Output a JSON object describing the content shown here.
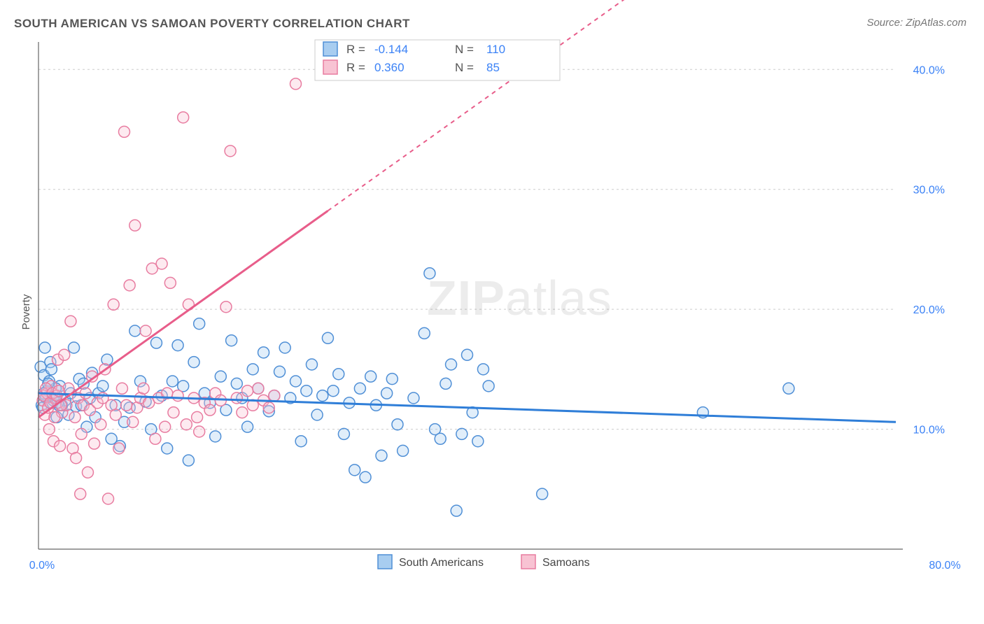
{
  "title": "SOUTH AMERICAN VS SAMOAN POVERTY CORRELATION CHART",
  "source": "Source: ZipAtlas.com",
  "ylabel": "Poverty",
  "watermark_a": "ZIP",
  "watermark_b": "atlas",
  "chart": {
    "type": "scatter",
    "background_color": "#ffffff",
    "grid_color": "#cccccc",
    "axis_color": "#666666",
    "tick_color": "#3b82f6",
    "x_min": 0.0,
    "x_max": 80.0,
    "y_min": 0.0,
    "y_max": 42.0,
    "x_ticks": [
      {
        "v": 0.0,
        "label": "0.0%"
      },
      {
        "v": 80.0,
        "label": "80.0%"
      }
    ],
    "y_ticks": [
      {
        "v": 10.0,
        "label": "10.0%"
      },
      {
        "v": 20.0,
        "label": "20.0%"
      },
      {
        "v": 30.0,
        "label": "30.0%"
      },
      {
        "v": 40.0,
        "label": "40.0%"
      }
    ],
    "marker_radius": 8,
    "marker_stroke_width": 1.5,
    "marker_fill_opacity": 0.35,
    "series": [
      {
        "name": "South Americans",
        "stroke": "#4f8fd6",
        "fill": "#a8cdf0",
        "trend_color": "#2f7ed8",
        "trend_y_at_xmin": 13.0,
        "trend_y_at_xmax": 10.6,
        "trend_dash_start_x": 80.0,
        "R": "-0.144",
        "N": "110",
        "points": [
          [
            0.2,
            15.2
          ],
          [
            0.3,
            12.0
          ],
          [
            0.5,
            14.5
          ],
          [
            0.6,
            16.8
          ],
          [
            0.8,
            13.2
          ],
          [
            1.0,
            12.8
          ],
          [
            1.1,
            15.6
          ],
          [
            1.3,
            12.2
          ],
          [
            1.5,
            12.6
          ],
          [
            1.7,
            11.0
          ],
          [
            2.0,
            13.6
          ],
          [
            2.2,
            12.0
          ],
          [
            2.5,
            12.4
          ],
          [
            2.8,
            11.2
          ],
          [
            3.0,
            13.0
          ],
          [
            3.3,
            16.8
          ],
          [
            3.5,
            11.9
          ],
          [
            3.8,
            14.2
          ],
          [
            4.0,
            12.0
          ],
          [
            4.2,
            13.8
          ],
          [
            4.5,
            10.2
          ],
          [
            4.8,
            12.6
          ],
          [
            5.0,
            14.7
          ],
          [
            5.3,
            11.0
          ],
          [
            5.6,
            13.0
          ],
          [
            6.0,
            13.6
          ],
          [
            6.4,
            15.8
          ],
          [
            6.8,
            9.2
          ],
          [
            7.2,
            12.0
          ],
          [
            7.6,
            8.6
          ],
          [
            8.0,
            10.6
          ],
          [
            8.5,
            11.8
          ],
          [
            9.0,
            18.2
          ],
          [
            9.5,
            14.0
          ],
          [
            10.0,
            12.3
          ],
          [
            10.5,
            10.0
          ],
          [
            11.0,
            17.2
          ],
          [
            11.5,
            12.8
          ],
          [
            12.0,
            8.4
          ],
          [
            12.5,
            14.0
          ],
          [
            13.0,
            17.0
          ],
          [
            13.5,
            13.6
          ],
          [
            14.0,
            7.4
          ],
          [
            14.5,
            15.6
          ],
          [
            15.0,
            18.8
          ],
          [
            15.5,
            13.0
          ],
          [
            16.0,
            12.2
          ],
          [
            16.5,
            9.4
          ],
          [
            17.0,
            14.4
          ],
          [
            17.5,
            11.6
          ],
          [
            18.0,
            17.4
          ],
          [
            18.5,
            13.8
          ],
          [
            19.0,
            12.6
          ],
          [
            19.5,
            10.2
          ],
          [
            20.0,
            15.0
          ],
          [
            20.5,
            13.4
          ],
          [
            21.0,
            16.4
          ],
          [
            21.5,
            11.5
          ],
          [
            22.0,
            12.8
          ],
          [
            22.5,
            14.8
          ],
          [
            23.0,
            16.8
          ],
          [
            23.5,
            12.6
          ],
          [
            24.0,
            14.0
          ],
          [
            24.5,
            9.0
          ],
          [
            25.0,
            13.2
          ],
          [
            25.5,
            15.4
          ],
          [
            26.0,
            11.2
          ],
          [
            26.5,
            12.8
          ],
          [
            27.0,
            17.6
          ],
          [
            27.5,
            13.2
          ],
          [
            28.0,
            14.6
          ],
          [
            28.5,
            9.6
          ],
          [
            29.0,
            12.2
          ],
          [
            29.5,
            6.6
          ],
          [
            30.0,
            13.4
          ],
          [
            30.5,
            6.0
          ],
          [
            31.0,
            14.4
          ],
          [
            31.5,
            12.0
          ],
          [
            32.0,
            7.8
          ],
          [
            32.5,
            13.0
          ],
          [
            33.0,
            14.2
          ],
          [
            33.5,
            10.4
          ],
          [
            34.0,
            8.2
          ],
          [
            35.0,
            12.6
          ],
          [
            36.0,
            18.0
          ],
          [
            36.5,
            23.0
          ],
          [
            37.0,
            10.0
          ],
          [
            37.5,
            9.2
          ],
          [
            38.0,
            13.8
          ],
          [
            38.5,
            15.4
          ],
          [
            39.0,
            3.2
          ],
          [
            39.5,
            9.6
          ],
          [
            40.0,
            16.2
          ],
          [
            40.5,
            11.4
          ],
          [
            41.0,
            9.0
          ],
          [
            41.5,
            15.0
          ],
          [
            42.0,
            13.6
          ],
          [
            47.0,
            4.6
          ],
          [
            62.0,
            11.4
          ],
          [
            70.0,
            13.4
          ],
          [
            0.5,
            13.0
          ],
          [
            1.0,
            14.0
          ],
          [
            1.2,
            15.0
          ],
          [
            1.4,
            12.4
          ],
          [
            1.6,
            13.4
          ],
          [
            1.9,
            12.0
          ],
          [
            0.7,
            12.6
          ],
          [
            0.9,
            13.8
          ],
          [
            0.4,
            11.8
          ],
          [
            1.8,
            12.2
          ]
        ]
      },
      {
        "name": "Samoans",
        "stroke": "#e87ca0",
        "fill": "#f8c3d3",
        "trend_color": "#e85d8a",
        "trend_y_at_xmin": 11.0,
        "trend_y_at_xmax": 62.0,
        "trend_dash_start_x": 27.0,
        "R": "0.360",
        "N": "85",
        "points": [
          [
            0.4,
            12.4
          ],
          [
            0.6,
            11.2
          ],
          [
            0.8,
            13.0
          ],
          [
            1.0,
            10.0
          ],
          [
            1.2,
            13.6
          ],
          [
            1.4,
            9.0
          ],
          [
            1.6,
            12.6
          ],
          [
            1.8,
            15.8
          ],
          [
            2.0,
            8.6
          ],
          [
            2.2,
            11.4
          ],
          [
            2.4,
            16.2
          ],
          [
            2.6,
            12.0
          ],
          [
            2.8,
            13.4
          ],
          [
            3.0,
            19.0
          ],
          [
            3.2,
            8.4
          ],
          [
            3.4,
            11.0
          ],
          [
            3.5,
            7.6
          ],
          [
            3.7,
            12.6
          ],
          [
            3.9,
            4.6
          ],
          [
            4.0,
            9.6
          ],
          [
            4.2,
            12.0
          ],
          [
            4.4,
            13.0
          ],
          [
            4.6,
            6.4
          ],
          [
            4.8,
            11.6
          ],
          [
            5.0,
            14.4
          ],
          [
            5.2,
            8.8
          ],
          [
            5.5,
            12.2
          ],
          [
            5.8,
            10.4
          ],
          [
            6.0,
            12.6
          ],
          [
            6.2,
            15.0
          ],
          [
            6.5,
            4.2
          ],
          [
            6.8,
            12.0
          ],
          [
            7.0,
            20.4
          ],
          [
            7.2,
            11.2
          ],
          [
            7.5,
            8.4
          ],
          [
            7.8,
            13.4
          ],
          [
            8.0,
            34.8
          ],
          [
            8.2,
            12.0
          ],
          [
            8.5,
            22.0
          ],
          [
            8.8,
            10.6
          ],
          [
            9.0,
            27.0
          ],
          [
            9.2,
            11.8
          ],
          [
            9.5,
            12.6
          ],
          [
            9.8,
            13.4
          ],
          [
            10.0,
            18.2
          ],
          [
            10.3,
            12.2
          ],
          [
            10.6,
            23.4
          ],
          [
            10.9,
            9.2
          ],
          [
            11.2,
            12.6
          ],
          [
            11.5,
            23.8
          ],
          [
            11.8,
            10.2
          ],
          [
            12.0,
            13.0
          ],
          [
            12.3,
            22.2
          ],
          [
            12.6,
            11.4
          ],
          [
            13.0,
            12.8
          ],
          [
            13.5,
            36.0
          ],
          [
            13.8,
            10.4
          ],
          [
            14.0,
            20.4
          ],
          [
            14.5,
            12.6
          ],
          [
            14.8,
            11.0
          ],
          [
            15.0,
            9.8
          ],
          [
            15.5,
            12.2
          ],
          [
            16.0,
            11.6
          ],
          [
            16.5,
            13.0
          ],
          [
            17.0,
            12.4
          ],
          [
            17.5,
            20.2
          ],
          [
            17.9,
            33.2
          ],
          [
            18.5,
            12.6
          ],
          [
            19.0,
            11.4
          ],
          [
            19.5,
            13.2
          ],
          [
            20.0,
            12.0
          ],
          [
            20.5,
            13.4
          ],
          [
            21.0,
            12.4
          ],
          [
            21.5,
            11.8
          ],
          [
            22.0,
            12.8
          ],
          [
            24.0,
            38.8
          ],
          [
            0.5,
            12.8
          ],
          [
            0.7,
            13.4
          ],
          [
            0.9,
            11.8
          ],
          [
            1.1,
            12.2
          ],
          [
            1.3,
            13.0
          ],
          [
            1.5,
            11.0
          ],
          [
            1.7,
            12.8
          ],
          [
            1.9,
            13.2
          ],
          [
            2.1,
            12.0
          ]
        ]
      }
    ],
    "legend_top": {
      "rows": [
        {
          "swatch_stroke": "#4f8fd6",
          "swatch_fill": "#a8cdf0",
          "R_label": "R =",
          "R_value": "-0.144",
          "N_label": "N =",
          "N_value": "110"
        },
        {
          "swatch_stroke": "#e87ca0",
          "swatch_fill": "#f8c3d3",
          "R_label": "R =",
          "R_value": "0.360",
          "N_label": "N =",
          "N_value": "85"
        }
      ]
    },
    "legend_bottom": {
      "items": [
        {
          "swatch_stroke": "#4f8fd6",
          "swatch_fill": "#a8cdf0",
          "label": "South Americans"
        },
        {
          "swatch_stroke": "#e87ca0",
          "swatch_fill": "#f8c3d3",
          "label": "Samoans"
        }
      ]
    }
  }
}
